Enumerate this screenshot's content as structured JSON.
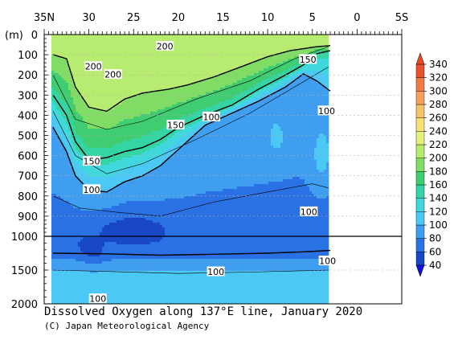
{
  "chart_data": {
    "type": "heatmap",
    "title": "Dissolved Oxygen along 137°E line, January 2020",
    "credit": "(C) Japan Meteorological Agency",
    "ylabel": "(m)",
    "x_ticks": [
      "35N",
      "30",
      "25",
      "20",
      "15",
      "10",
      "5",
      "0",
      "5S"
    ],
    "x_tick_values": [
      35,
      30,
      25,
      20,
      15,
      10,
      5,
      0,
      -5
    ],
    "xlim": [
      35,
      -5
    ],
    "data_xlim": [
      34,
      3
    ],
    "upper_panel": {
      "ylim": [
        0,
        1000
      ],
      "y_ticks": [
        "0",
        "100",
        "200",
        "300",
        "400",
        "500",
        "600",
        "700",
        "800",
        "900",
        "1000"
      ]
    },
    "lower_panel": {
      "ylim": [
        1000,
        2000
      ],
      "y_ticks": [
        "1500",
        "2000"
      ]
    },
    "colorbar": {
      "levels": [
        40,
        60,
        80,
        100,
        120,
        140,
        160,
        180,
        200,
        220,
        240,
        260,
        280,
        300,
        320,
        340
      ],
      "labels": [
        "340",
        "320",
        "300",
        "280",
        "260",
        "240",
        "220",
        "200",
        "180",
        "160",
        "140",
        "120",
        "100",
        "80",
        "60",
        "40"
      ],
      "colors": [
        "#1848c8",
        "#2a72e4",
        "#3f9ef0",
        "#4cc8f4",
        "#40d8dc",
        "#34d4a4",
        "#40cc70",
        "#80dc64",
        "#b8ec70",
        "#e4f07c",
        "#f6e078",
        "#f6c470",
        "#f5a060",
        "#f07a48",
        "#e85030",
        "#d82818"
      ],
      "extend_max_color": "#e84a20",
      "extend_min_color": "#1010e0"
    },
    "contour_labels": [
      {
        "text": "200",
        "lat": 21.5,
        "depth": 60
      },
      {
        "text": "200",
        "lat": 29.5,
        "depth": 160
      },
      {
        "text": "200",
        "lat": 27.3,
        "depth": 200
      },
      {
        "text": "150",
        "lat": 5.5,
        "depth": 125
      },
      {
        "text": "150",
        "lat": 20.3,
        "depth": 450
      },
      {
        "text": "100",
        "lat": 16.3,
        "depth": 410
      },
      {
        "text": "100",
        "lat": 3.4,
        "depth": 380
      },
      {
        "text": "150",
        "lat": 29.7,
        "depth": 630
      },
      {
        "text": "100",
        "lat": 29.7,
        "depth": 770
      },
      {
        "text": "100",
        "lat": 5.4,
        "depth": 880
      },
      {
        "text": "100",
        "lat": 3.3,
        "depth": 1370
      },
      {
        "text": "100",
        "lat": 15.8,
        "depth": 1530
      },
      {
        "text": "100",
        "lat": 29.0,
        "depth": 1930
      }
    ]
  },
  "colors": {
    "background": "#ffffff",
    "no_data": "#ffffff",
    "contour_line": "#000000"
  }
}
